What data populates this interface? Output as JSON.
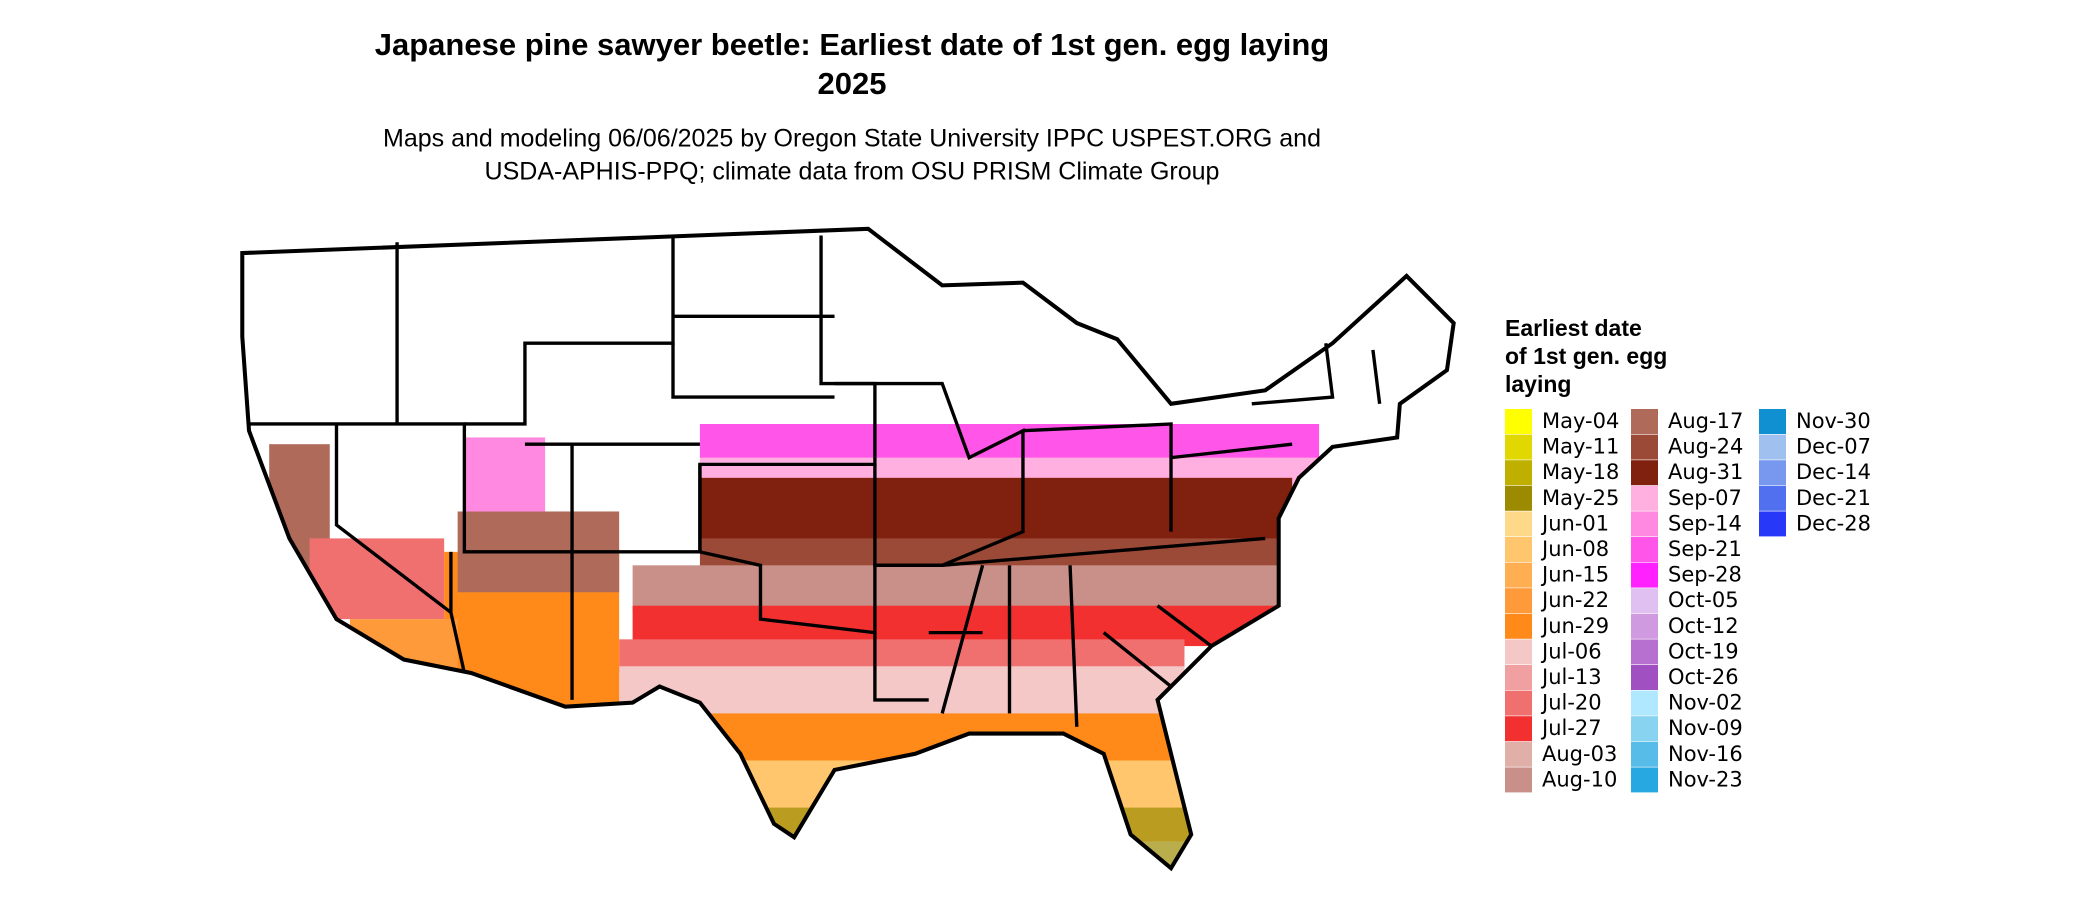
{
  "header": {
    "title_lines": [
      "Japanese pine sawyer beetle: Earliest date of 1st gen. egg laying",
      "2025"
    ],
    "subtitle_lines": [
      "Maps and modeling 06/06/2025 by Oregon State University IPPC USPEST.ORG and",
      "USDA-APHIS-PPQ; climate data from OSU PRISM Climate Group"
    ]
  },
  "legend": {
    "title_lines": [
      "Earliest date",
      "of 1st gen. egg",
      "laying"
    ],
    "items": [
      {
        "label": "May-04",
        "color": "#ffff00"
      },
      {
        "label": "May-11",
        "color": "#e0d800"
      },
      {
        "label": "May-18",
        "color": "#bfb000"
      },
      {
        "label": "May-25",
        "color": "#9c8a00"
      },
      {
        "label": "Jun-01",
        "color": "#ffd98a"
      },
      {
        "label": "Jun-08",
        "color": "#ffc66e"
      },
      {
        "label": "Jun-15",
        "color": "#ffae52"
      },
      {
        "label": "Jun-22",
        "color": "#ff9a3a"
      },
      {
        "label": "Jun-29",
        "color": "#ff8a1a"
      },
      {
        "label": "Jul-06",
        "color": "#f5c8c8"
      },
      {
        "label": "Jul-13",
        "color": "#f0a0a0"
      },
      {
        "label": "Jul-20",
        "color": "#f07070"
      },
      {
        "label": "Jul-27",
        "color": "#f23030"
      },
      {
        "label": "Aug-03",
        "color": "#e0b0a8"
      },
      {
        "label": "Aug-10",
        "color": "#c89088"
      },
      {
        "label": "Aug-17",
        "color": "#b06a5a"
      },
      {
        "label": "Aug-24",
        "color": "#9c4a38"
      },
      {
        "label": "Aug-31",
        "color": "#80200f"
      },
      {
        "label": "Sep-07",
        "color": "#ffb0e0"
      },
      {
        "label": "Sep-14",
        "color": "#ff88e0"
      },
      {
        "label": "Sep-21",
        "color": "#ff55e8"
      },
      {
        "label": "Sep-28",
        "color": "#ff22ff"
      },
      {
        "label": "Oct-05",
        "color": "#e0c0f0"
      },
      {
        "label": "Oct-12",
        "color": "#d09ae0"
      },
      {
        "label": "Oct-19",
        "color": "#b870d0"
      },
      {
        "label": "Oct-26",
        "color": "#a050c0"
      },
      {
        "label": "Nov-02",
        "color": "#b0e8ff"
      },
      {
        "label": "Nov-09",
        "color": "#88d4f0"
      },
      {
        "label": "Nov-16",
        "color": "#58bce8"
      },
      {
        "label": "Nov-23",
        "color": "#28a8e0"
      },
      {
        "label": "Nov-30",
        "color": "#1090d0"
      },
      {
        "label": "Dec-07",
        "color": "#a0c0f0"
      },
      {
        "label": "Dec-14",
        "color": "#7898f0"
      },
      {
        "label": "Dec-21",
        "color": "#5070f0"
      },
      {
        "label": "Dec-28",
        "color": "#2838f8"
      }
    ]
  }
}
